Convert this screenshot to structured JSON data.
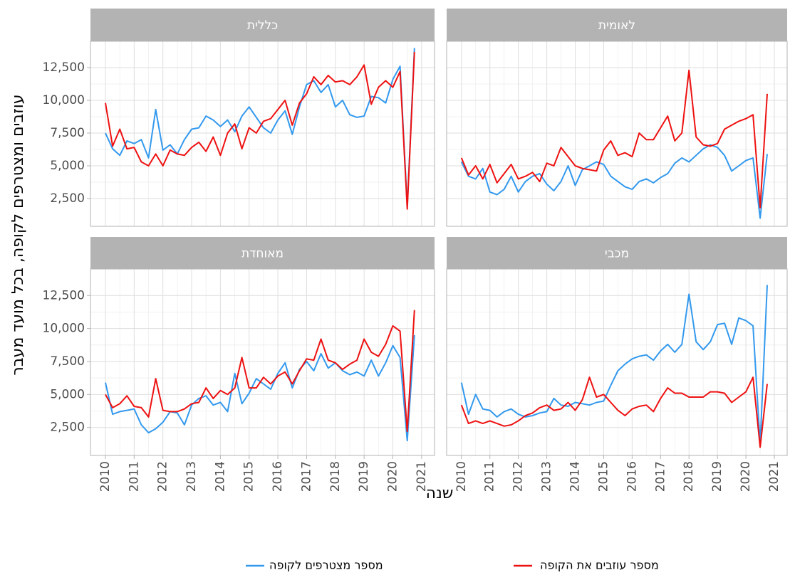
{
  "chart_data": [
    {
      "type": "line",
      "title": "כללית",
      "ylabel": "עוזבים ומצטרפים לקופה, בכל מועד מעבר",
      "xlabel": "שנה",
      "x": [
        2010,
        2010.25,
        2010.5,
        2010.75,
        2011,
        2011.25,
        2011.5,
        2011.75,
        2012,
        2012.25,
        2012.5,
        2012.75,
        2013,
        2013.25,
        2013.5,
        2013.75,
        2014,
        2014.25,
        2014.5,
        2014.75,
        2015,
        2015.25,
        2015.5,
        2015.75,
        2016,
        2016.25,
        2016.5,
        2016.75,
        2017,
        2017.25,
        2017.5,
        2017.75,
        2018,
        2018.25,
        2018.5,
        2018.75,
        2019,
        2019.25,
        2019.5,
        2019.75,
        2020,
        2020.25,
        2020.5,
        2020.75
      ],
      "series": [
        {
          "name": "מספר עוזבים את הקופה",
          "color": "#ee1111",
          "values": [
            9800,
            6500,
            7800,
            6300,
            6400,
            5300,
            5000,
            5900,
            5000,
            6200,
            5900,
            5800,
            6400,
            6800,
            6100,
            7200,
            5800,
            7500,
            8200,
            6300,
            7900,
            7500,
            8400,
            8600,
            9300,
            10000,
            8100,
            9800,
            10500,
            11800,
            11200,
            11900,
            11400,
            11500,
            11200,
            11800,
            12700,
            9700,
            11000,
            11500,
            11000,
            12200,
            1700,
            13700
          ]
        },
        {
          "name": "מספר מצטרפים לקופה",
          "color": "#3399ee",
          "values": [
            7500,
            6300,
            5800,
            6900,
            6700,
            7000,
            5600,
            9300,
            6200,
            6600,
            5900,
            7000,
            7800,
            7900,
            8800,
            8500,
            8000,
            8500,
            7600,
            8800,
            9500,
            8700,
            7900,
            7500,
            8500,
            9200,
            7400,
            9500,
            11200,
            11500,
            10600,
            11200,
            9500,
            10000,
            8900,
            8700,
            8800,
            10300,
            10200,
            9800,
            11600,
            12600,
            1900,
            14000
          ]
        }
      ],
      "xlim": [
        2009.48,
        2021.45
      ],
      "ylim": [
        380,
        14510
      ],
      "xticks": [
        2010,
        2011,
        2012,
        2013,
        2014,
        2015,
        2016,
        2017,
        2018,
        2019,
        2020,
        2021
      ],
      "yticks": [
        {
          "value": 2500,
          "label": "2,500"
        },
        {
          "value": 5000,
          "label": "5,000"
        },
        {
          "value": 7500,
          "label": "7,500"
        },
        {
          "value": 10000,
          "label": "10,000"
        },
        {
          "value": 12500,
          "label": "12,500"
        }
      ],
      "grid": true
    },
    {
      "type": "line",
      "title": "לאומית",
      "x": [
        2010,
        2010.25,
        2010.5,
        2010.75,
        2011,
        2011.25,
        2011.5,
        2011.75,
        2012,
        2012.25,
        2012.5,
        2012.75,
        2013,
        2013.25,
        2013.5,
        2013.75,
        2014,
        2014.25,
        2014.5,
        2014.75,
        2015,
        2015.25,
        2015.5,
        2015.75,
        2016,
        2016.25,
        2016.5,
        2016.75,
        2017,
        2017.25,
        2017.5,
        2017.75,
        2018,
        2018.25,
        2018.5,
        2018.75,
        2019,
        2019.25,
        2019.5,
        2019.75,
        2020,
        2020.25,
        2020.5,
        2020.75
      ],
      "series": [
        {
          "name": "מספר עוזבים את הקופה",
          "color": "#ee1111",
          "values": [
            5600,
            4300,
            5000,
            4000,
            5100,
            3700,
            4400,
            5100,
            4000,
            4200,
            4500,
            3800,
            5200,
            5000,
            6400,
            5700,
            5000,
            4800,
            4700,
            4600,
            6200,
            6900,
            5800,
            6000,
            5700,
            7500,
            7000,
            7000,
            7900,
            8800,
            6900,
            7500,
            12300,
            7200,
            6600,
            6500,
            6700,
            7800,
            8100,
            8400,
            8600,
            8900,
            1800,
            10500
          ]
        },
        {
          "name": "מספר מצטרפים לקופה",
          "color": "#3399ee",
          "values": [
            5300,
            4200,
            4000,
            4800,
            3000,
            2800,
            3200,
            4200,
            3000,
            3800,
            4200,
            4400,
            3600,
            3100,
            3800,
            5000,
            3500,
            4700,
            5000,
            5300,
            5100,
            4200,
            3800,
            3400,
            3200,
            3800,
            4000,
            3700,
            4100,
            4400,
            5200,
            5600,
            5300,
            5800,
            6300,
            6600,
            6400,
            5800,
            4600,
            5000,
            5400,
            5600,
            1000,
            5900
          ]
        }
      ],
      "xlim": [
        2009.48,
        2021.45
      ],
      "ylim": [
        380,
        14510
      ],
      "xticks": [
        2010,
        2011,
        2012,
        2013,
        2014,
        2015,
        2016,
        2017,
        2018,
        2019,
        2020,
        2021
      ],
      "yticks": [
        {
          "value": 2500,
          "label": "2,500"
        },
        {
          "value": 5000,
          "label": "5,000"
        },
        {
          "value": 7500,
          "label": "7,500"
        },
        {
          "value": 10000,
          "label": "10,000"
        },
        {
          "value": 12500,
          "label": "12,500"
        }
      ],
      "grid": true
    },
    {
      "type": "line",
      "title": "מאוחדת",
      "x": [
        2010,
        2010.25,
        2010.5,
        2010.75,
        2011,
        2011.25,
        2011.5,
        2011.75,
        2012,
        2012.25,
        2012.5,
        2012.75,
        2013,
        2013.25,
        2013.5,
        2013.75,
        2014,
        2014.25,
        2014.5,
        2014.75,
        2015,
        2015.25,
        2015.5,
        2015.75,
        2016,
        2016.25,
        2016.5,
        2016.75,
        2017,
        2017.25,
        2017.5,
        2017.75,
        2018,
        2018.25,
        2018.5,
        2018.75,
        2019,
        2019.25,
        2019.5,
        2019.75,
        2020,
        2020.25,
        2020.5,
        2020.75
      ],
      "series": [
        {
          "name": "מספר עוזבים את הקופה",
          "color": "#ee1111",
          "values": [
            5000,
            4000,
            4300,
            4900,
            4100,
            4000,
            3300,
            6200,
            3800,
            3700,
            3700,
            3900,
            4300,
            4400,
            5500,
            4700,
            5300,
            5000,
            5500,
            7800,
            5500,
            5500,
            6300,
            5800,
            6400,
            6700,
            5800,
            6800,
            7700,
            7600,
            9200,
            7600,
            7400,
            6900,
            7300,
            7600,
            9200,
            8200,
            7900,
            8800,
            10200,
            9800,
            2200,
            11400
          ]
        },
        {
          "name": "מספר מצטרפים לקופה",
          "color": "#3399ee",
          "values": [
            5900,
            3500,
            3700,
            3800,
            3900,
            2700,
            2100,
            2400,
            2900,
            3700,
            3600,
            2700,
            4200,
            4700,
            4900,
            4200,
            4400,
            3700,
            6600,
            4300,
            5100,
            6200,
            5800,
            5400,
            6600,
            7400,
            5500,
            6900,
            7500,
            6800,
            8100,
            7000,
            7400,
            6800,
            6500,
            6700,
            6400,
            7600,
            6400,
            7400,
            8700,
            7800,
            1500,
            9500
          ]
        }
      ],
      "xlim": [
        2009.48,
        2021.45
      ],
      "ylim": [
        380,
        14510
      ],
      "xticks": [
        2010,
        2011,
        2012,
        2013,
        2014,
        2015,
        2016,
        2017,
        2018,
        2019,
        2020,
        2021
      ],
      "yticks": [
        {
          "value": 2500,
          "label": "2,500"
        },
        {
          "value": 5000,
          "label": "5,000"
        },
        {
          "value": 7500,
          "label": "7,500"
        },
        {
          "value": 10000,
          "label": "10,000"
        },
        {
          "value": 12500,
          "label": "12,500"
        }
      ],
      "grid": true
    },
    {
      "type": "line",
      "title": "מכבי",
      "x": [
        2010,
        2010.25,
        2010.5,
        2010.75,
        2011,
        2011.25,
        2011.5,
        2011.75,
        2012,
        2012.25,
        2012.5,
        2012.75,
        2013,
        2013.25,
        2013.5,
        2013.75,
        2014,
        2014.25,
        2014.5,
        2014.75,
        2015,
        2015.25,
        2015.5,
        2015.75,
        2016,
        2016.25,
        2016.5,
        2016.75,
        2017,
        2017.25,
        2017.5,
        2017.75,
        2018,
        2018.25,
        2018.5,
        2018.75,
        2019,
        2019.25,
        2019.5,
        2019.75,
        2020,
        2020.25,
        2020.5,
        2020.75
      ],
      "series": [
        {
          "name": "מספר עוזבים את הקופה",
          "color": "#ee1111",
          "values": [
            4200,
            2800,
            3000,
            2800,
            3000,
            2800,
            2600,
            2700,
            3000,
            3400,
            3600,
            4000,
            4200,
            3800,
            3900,
            4400,
            3800,
            4600,
            6300,
            4800,
            5000,
            4400,
            3800,
            3400,
            3900,
            4100,
            4200,
            3700,
            4700,
            5500,
            5100,
            5100,
            4800,
            4800,
            4800,
            5200,
            5200,
            5100,
            4400,
            4800,
            5200,
            6300,
            1000,
            5800
          ]
        },
        {
          "name": "מספר מצטרפים לקופה",
          "color": "#3399ee",
          "values": [
            5900,
            3500,
            5000,
            3900,
            3800,
            3300,
            3700,
            3900,
            3500,
            3300,
            3400,
            3600,
            3700,
            4700,
            4200,
            4100,
            4400,
            4300,
            4200,
            4400,
            4500,
            5700,
            6800,
            7300,
            7700,
            7900,
            8000,
            7600,
            8300,
            8800,
            8200,
            8800,
            12600,
            9000,
            8400,
            9000,
            10300,
            10400,
            8800,
            10800,
            10600,
            10200,
            1200,
            13300
          ]
        }
      ],
      "xlim": [
        2009.48,
        2021.45
      ],
      "ylim": [
        380,
        14510
      ],
      "xticks": [
        2010,
        2011,
        2012,
        2013,
        2014,
        2015,
        2016,
        2017,
        2018,
        2019,
        2020,
        2021
      ],
      "yticks": [
        {
          "value": 2500,
          "label": "2,500"
        },
        {
          "value": 5000,
          "label": "5,000"
        },
        {
          "value": 7500,
          "label": "7,500"
        },
        {
          "value": 10000,
          "label": "10,000"
        },
        {
          "value": 12500,
          "label": "12,500"
        }
      ],
      "grid": true
    }
  ]
}
